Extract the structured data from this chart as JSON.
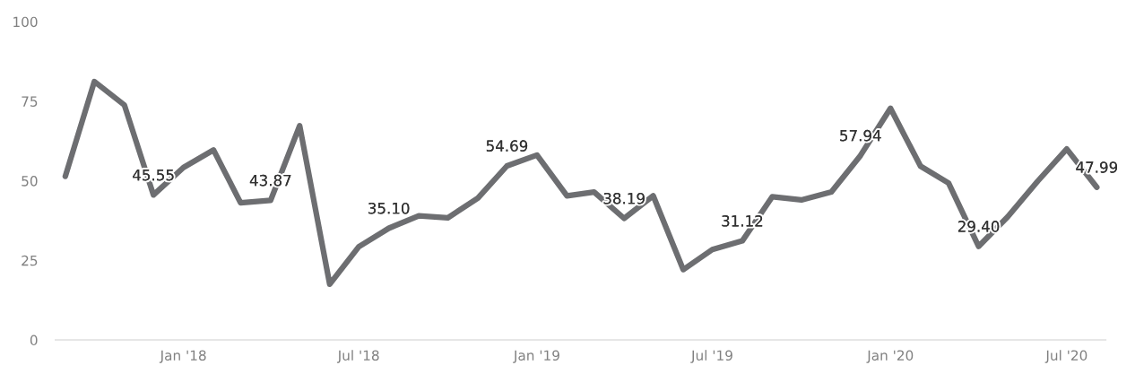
{
  "chart_data": {
    "type": "line",
    "x": [
      "2017-09",
      "2017-10",
      "2017-11",
      "2017-12",
      "2018-01",
      "2018-02",
      "2018-03",
      "2018-04",
      "2018-05",
      "2018-06",
      "2018-07",
      "2018-08",
      "2018-09",
      "2018-10",
      "2018-11",
      "2018-12",
      "2019-01",
      "2019-02",
      "2019-03",
      "2019-04",
      "2019-05",
      "2019-06",
      "2019-07",
      "2019-08",
      "2019-09",
      "2019-10",
      "2019-11",
      "2019-12",
      "2020-01",
      "2020-02",
      "2020-03",
      "2020-04",
      "2020-05",
      "2020-06",
      "2020-07",
      "2020-08"
    ],
    "series": [
      {
        "color": "#6d6e71",
        "values": [
          51.4,
          81.2,
          73.8,
          45.55,
          54.2,
          59.7,
          43.1,
          43.87,
          67.3,
          17.5,
          29.3,
          35.1,
          39.0,
          38.4,
          44.6,
          54.69,
          58.1,
          45.3,
          46.5,
          38.19,
          45.3,
          22.1,
          28.4,
          31.12,
          45.0,
          44.0,
          46.5,
          57.94,
          72.8,
          54.6,
          49.3,
          29.4,
          38.7,
          49.9,
          60.0,
          47.99
        ],
        "value_labels": [
          null,
          null,
          null,
          "45.55",
          null,
          null,
          null,
          "43.87",
          null,
          null,
          null,
          "35.10",
          null,
          null,
          null,
          "54.69",
          null,
          null,
          null,
          "38.19",
          null,
          null,
          null,
          "31.12",
          null,
          null,
          null,
          "57.94",
          null,
          null,
          null,
          "29.40",
          null,
          null,
          null,
          "47.99"
        ]
      }
    ],
    "xlim": [
      "2017-08-22",
      "2020-08-10"
    ],
    "xticks": [
      {
        "value": "2018-01",
        "label": "Jan '18"
      },
      {
        "value": "2018-07",
        "label": "Jul '18"
      },
      {
        "value": "2019-01",
        "label": "Jan '19"
      },
      {
        "value": "2019-07",
        "label": "Jul '19"
      },
      {
        "value": "2020-01",
        "label": "Jan '20"
      },
      {
        "value": "2020-07",
        "label": "Jul '20"
      }
    ],
    "ylim": [
      0,
      100
    ],
    "yticks": [
      0,
      25,
      50,
      75,
      100
    ],
    "grid": false,
    "marker": "none",
    "line_style": "solid"
  }
}
